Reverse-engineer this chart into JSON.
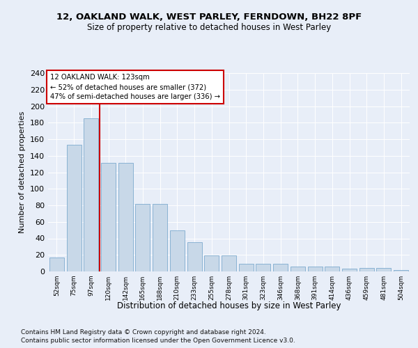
{
  "title1": "12, OAKLAND WALK, WEST PARLEY, FERNDOWN, BH22 8PF",
  "title2": "Size of property relative to detached houses in West Parley",
  "xlabel": "Distribution of detached houses by size in West Parley",
  "ylabel": "Number of detached properties",
  "categories": [
    "52sqm",
    "75sqm",
    "97sqm",
    "120sqm",
    "142sqm",
    "165sqm",
    "188sqm",
    "210sqm",
    "233sqm",
    "255sqm",
    "278sqm",
    "301sqm",
    "323sqm",
    "346sqm",
    "368sqm",
    "391sqm",
    "414sqm",
    "436sqm",
    "459sqm",
    "481sqm",
    "504sqm"
  ],
  "values": [
    17,
    153,
    185,
    131,
    131,
    82,
    82,
    50,
    35,
    19,
    19,
    9,
    9,
    9,
    6,
    6,
    6,
    3,
    4,
    4,
    2
  ],
  "bar_color": "#c8d8e8",
  "bar_edge_color": "#6b9fc8",
  "vline_pos": 2.5,
  "vline_color": "#cc0000",
  "annotation_line1": "12 OAKLAND WALK: 123sqm",
  "annotation_line2": "← 52% of detached houses are smaller (372)",
  "annotation_line3": "47% of semi-detached houses are larger (336) →",
  "annotation_box_color": "white",
  "annotation_box_edge": "#cc0000",
  "ylim_max": 240,
  "yticks": [
    0,
    20,
    40,
    60,
    80,
    100,
    120,
    140,
    160,
    180,
    200,
    220,
    240
  ],
  "footer1": "Contains HM Land Registry data © Crown copyright and database right 2024.",
  "footer2": "Contains public sector information licensed under the Open Government Licence v3.0.",
  "bg_color": "#e8eef8"
}
